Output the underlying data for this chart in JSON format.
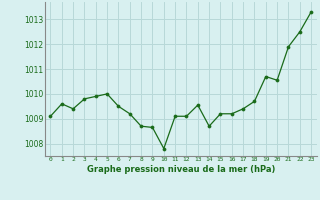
{
  "x": [
    0,
    1,
    2,
    3,
    4,
    5,
    6,
    7,
    8,
    9,
    10,
    11,
    12,
    13,
    14,
    15,
    16,
    17,
    18,
    19,
    20,
    21,
    22,
    23
  ],
  "y": [
    1009.1,
    1009.6,
    1009.4,
    1009.8,
    1009.9,
    1010.0,
    1009.5,
    1009.2,
    1008.7,
    1008.65,
    1007.8,
    1009.1,
    1009.1,
    1009.55,
    1008.7,
    1009.2,
    1009.2,
    1009.4,
    1009.7,
    1010.7,
    1010.55,
    1011.9,
    1012.5,
    1013.3
  ],
  "line_color": "#1a6b1a",
  "marker_color": "#1a6b1a",
  "bg_color": "#d8f0f0",
  "grid_color": "#b8d8d8",
  "xlabel": "Graphe pression niveau de la mer (hPa)",
  "xlabel_color": "#1a6b1a",
  "tick_color": "#1a6b1a",
  "axis_color": "#888888",
  "ylim": [
    1007.5,
    1013.7
  ],
  "yticks": [
    1008,
    1009,
    1010,
    1011,
    1012,
    1013
  ],
  "xticks": [
    0,
    1,
    2,
    3,
    4,
    5,
    6,
    7,
    8,
    9,
    10,
    11,
    12,
    13,
    14,
    15,
    16,
    17,
    18,
    19,
    20,
    21,
    22,
    23
  ]
}
